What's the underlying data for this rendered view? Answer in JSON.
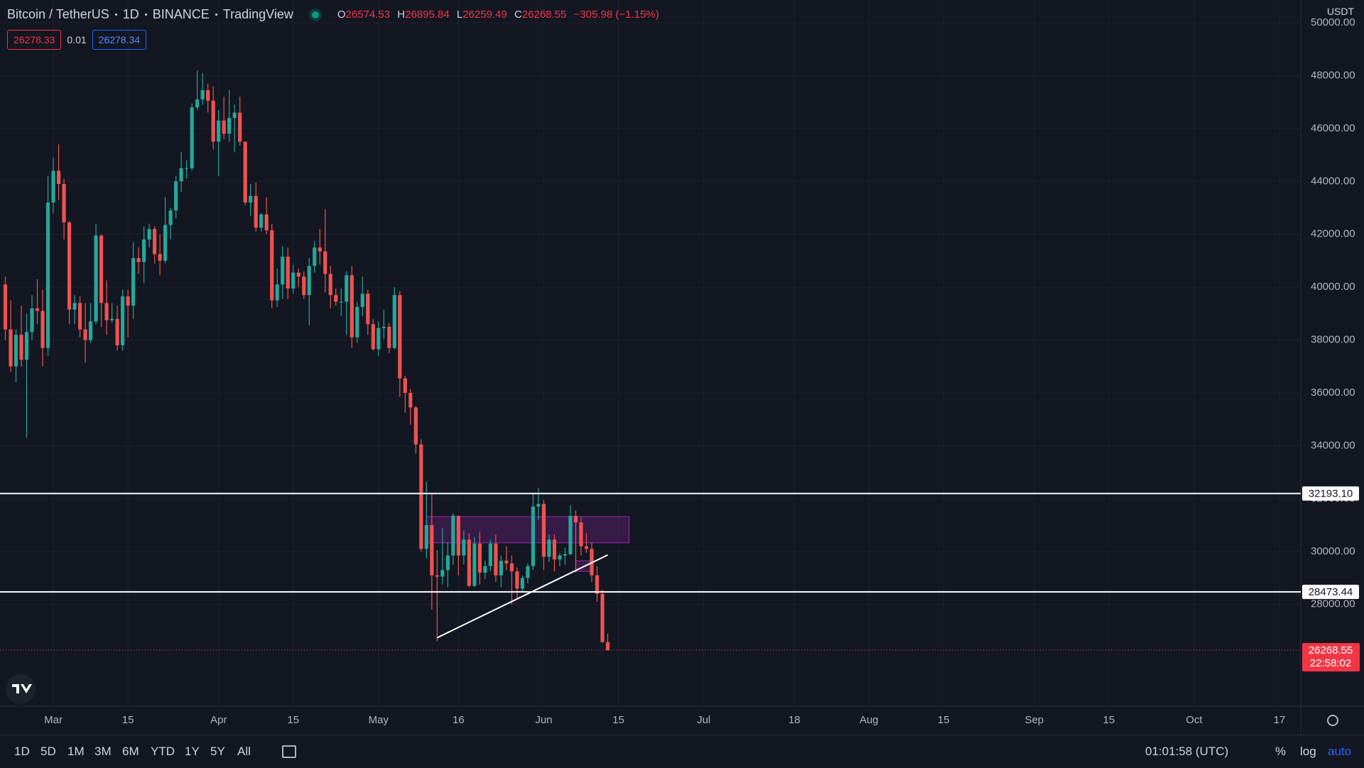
{
  "header": {
    "symbol": "Bitcoin / TetherUS",
    "interval": "1D",
    "exchange": "BINANCE",
    "source": "TradingView",
    "ohlc_labels": [
      "O",
      "H",
      "L",
      "C"
    ],
    "change": "−305.98 (−1.15%)",
    "bid": 26278.33,
    "spread": 0.01,
    "ask": 26278.34,
    "currency": "USDT",
    "countdown": "22:58:02"
  },
  "toolbar": {
    "ranges": [
      "1D",
      "5D",
      "1M",
      "3M",
      "6M",
      "YTD",
      "1Y",
      "5Y",
      "All"
    ],
    "time": "01:01:58 (UTC)",
    "options": [
      "%",
      "log",
      "auto"
    ]
  },
  "chart_data": {
    "type": "candlestick",
    "up_color": "#26a69a",
    "down_color": "#ef5350",
    "grid": true,
    "x": [
      "02-20",
      "02-21",
      "02-22",
      "02-23",
      "02-24",
      "02-25",
      "02-26",
      "02-27",
      "02-28",
      "03-01",
      "03-02",
      "03-03",
      "03-04",
      "03-05",
      "03-06",
      "03-07",
      "03-08",
      "03-09",
      "03-10",
      "03-11",
      "03-12",
      "03-13",
      "03-14",
      "03-15",
      "03-16",
      "03-17",
      "03-18",
      "03-19",
      "03-20",
      "03-21",
      "03-22",
      "03-23",
      "03-24",
      "03-25",
      "03-26",
      "03-27",
      "03-28",
      "03-29",
      "03-30",
      "03-31",
      "04-01",
      "04-02",
      "04-03",
      "04-04",
      "04-05",
      "04-06",
      "04-07",
      "04-08",
      "04-09",
      "04-10",
      "04-11",
      "04-12",
      "04-13",
      "04-14",
      "04-15",
      "04-16",
      "04-17",
      "04-18",
      "04-19",
      "04-20",
      "04-21",
      "04-22",
      "04-23",
      "04-24",
      "04-25",
      "04-26",
      "04-27",
      "04-28",
      "04-29",
      "04-30",
      "05-01",
      "05-02",
      "05-03",
      "05-04",
      "05-05",
      "05-06",
      "05-07",
      "05-08",
      "05-09",
      "05-10",
      "05-11",
      "05-12",
      "05-13",
      "05-14",
      "05-15",
      "05-16",
      "05-17",
      "05-18",
      "05-19",
      "05-20",
      "05-21",
      "05-22",
      "05-23",
      "05-24",
      "05-25",
      "05-26",
      "05-27",
      "05-28",
      "05-29",
      "05-30",
      "05-31",
      "06-01",
      "06-02",
      "06-03",
      "06-04",
      "06-05",
      "06-06",
      "06-07",
      "06-08",
      "06-09",
      "06-10",
      "06-11",
      "06-12",
      "06-13"
    ],
    "open": [
      40100,
      38400,
      37000,
      38200,
      37250,
      38300,
      39200,
      39100,
      37700,
      43200,
      44400,
      43900,
      42450,
      39150,
      39400,
      38400,
      38000,
      38700,
      41950,
      39400,
      38750,
      38800,
      37800,
      39650,
      39300,
      41100,
      40950,
      41800,
      42200,
      41250,
      41000,
      42350,
      42900,
      44000,
      44500,
      44500,
      46800,
      47100,
      47450,
      47050,
      45500,
      46300,
      45800,
      46400,
      46600,
      45500,
      43200,
      43450,
      42250,
      42750,
      42150,
      39500,
      40100,
      41150,
      39950,
      40550,
      40400,
      39700,
      40800,
      41500,
      41350,
      40500,
      39700,
      39450,
      39450,
      40450,
      38100,
      39250,
      39750,
      38600,
      37650,
      38450,
      38500,
      37700,
      39700,
      36550,
      36000,
      35450,
      34050,
      30100,
      31000,
      29100,
      29050,
      29300,
      29850,
      31350,
      29850,
      30450,
      28700,
      30300,
      29200,
      29450,
      30300,
      29100,
      29650,
      29550,
      29250,
      28600,
      29000,
      29450,
      31700,
      31800,
      29800,
      30450,
      29700,
      29850,
      29900,
      31350,
      31100,
      30200,
      30100,
      29100,
      28400,
      26574.53
    ],
    "high": [
      40400,
      39500,
      38400,
      39300,
      39000,
      39700,
      40300,
      39900,
      44200,
      44900,
      45400,
      44100,
      42500,
      39700,
      39650,
      39400,
      39400,
      42400,
      42000,
      40250,
      39400,
      39300,
      39900,
      39900,
      41700,
      41500,
      42300,
      42400,
      42300,
      42000,
      43400,
      43000,
      44200,
      45100,
      44800,
      46950,
      48200,
      48100,
      47700,
      47600,
      46700,
      47200,
      47450,
      46900,
      47200,
      45500,
      43900,
      43950,
      42800,
      43400,
      42400,
      40700,
      41550,
      41500,
      40850,
      40700,
      40600,
      41100,
      41750,
      42200,
      42950,
      40800,
      39950,
      39950,
      40600,
      40800,
      39450,
      40400,
      39900,
      38800,
      38700,
      39150,
      38650,
      40000,
      39850,
      36650,
      36150,
      35500,
      34250,
      32650,
      32200,
      30050,
      30900,
      30350,
      31450,
      31350,
      30800,
      30700,
      30550,
      30750,
      29650,
      30450,
      30650,
      29850,
      30200,
      29850,
      29400,
      29100,
      29550,
      32200,
      32400,
      31950,
      30650,
      30650,
      29950,
      30150,
      31750,
      31550,
      31300,
      30700,
      30350,
      29450,
      28550,
      26895.84
    ],
    "low": [
      38000,
      36800,
      36400,
      37000,
      34300,
      38000,
      38600,
      37000,
      37400,
      42800,
      43300,
      41800,
      38600,
      38600,
      38100,
      37150,
      37900,
      38600,
      38500,
      38200,
      38650,
      37600,
      37600,
      38100,
      38800,
      40500,
      40150,
      41500,
      40900,
      40450,
      40900,
      41800,
      42600,
      43600,
      44100,
      44400,
      46700,
      46900,
      46600,
      45200,
      44200,
      45600,
      45500,
      45100,
      45350,
      43100,
      42700,
      42100,
      42100,
      42000,
      39200,
      39250,
      39550,
      39550,
      39750,
      40000,
      39550,
      38550,
      40550,
      40850,
      39800,
      39200,
      39300,
      38900,
      38200,
      37700,
      37900,
      38900,
      38200,
      37600,
      37400,
      38050,
      37500,
      37650,
      35850,
      35250,
      34800,
      33700,
      30000,
      29750,
      27800,
      26600,
      28750,
      28650,
      29500,
      29100,
      29500,
      28650,
      28650,
      28750,
      28950,
      29250,
      28850,
      28650,
      29300,
      28000,
      28250,
      28450,
      28800,
      29300,
      31200,
      29300,
      29600,
      29250,
      29450,
      29500,
      29850,
      29200,
      29850,
      29950,
      28850,
      28100,
      26550,
      26259.49
    ],
    "close": [
      38400,
      37000,
      38200,
      37250,
      38300,
      39200,
      39100,
      37700,
      43200,
      44400,
      43900,
      42450,
      39150,
      39400,
      38400,
      38000,
      38700,
      41950,
      39400,
      38750,
      38800,
      37800,
      39650,
      39300,
      41100,
      40950,
      41800,
      42200,
      41250,
      41000,
      42350,
      42900,
      44000,
      44500,
      44500,
      46800,
      47100,
      47450,
      47050,
      45500,
      46300,
      45800,
      46400,
      46600,
      45500,
      43200,
      43450,
      42250,
      42750,
      42150,
      39500,
      40100,
      41150,
      39950,
      40550,
      40400,
      39700,
      40800,
      41500,
      41350,
      40500,
      39700,
      39450,
      39450,
      40450,
      38100,
      39250,
      39750,
      38600,
      37650,
      38450,
      38500,
      37700,
      39700,
      36550,
      36000,
      35450,
      34050,
      30100,
      31000,
      29100,
      29050,
      29300,
      29850,
      31350,
      29850,
      30450,
      28700,
      30300,
      29200,
      29450,
      30300,
      29100,
      29650,
      29550,
      29250,
      28600,
      29000,
      29450,
      31700,
      31800,
      29800,
      30450,
      29700,
      29850,
      29900,
      31350,
      31100,
      30200,
      30100,
      29100,
      28400,
      26574.53,
      26268.55
    ],
    "xlim": [
      "02-19",
      "10-21"
    ],
    "xticks": [
      {
        "value": "03-01",
        "label": "Mar"
      },
      {
        "value": "03-15",
        "label": "15"
      },
      {
        "value": "04-01",
        "label": "Apr"
      },
      {
        "value": "04-15",
        "label": "15"
      },
      {
        "value": "05-01",
        "label": "May"
      },
      {
        "value": "05-16",
        "label": "16"
      },
      {
        "value": "06-01",
        "label": "Jun"
      },
      {
        "value": "06-15",
        "label": "15"
      },
      {
        "value": "07-01",
        "label": "Jul"
      },
      {
        "value": "07-18",
        "label": "18"
      },
      {
        "value": "08-01",
        "label": "Aug"
      },
      {
        "value": "08-15",
        "label": "15"
      },
      {
        "value": "09-01",
        "label": "Sep"
      },
      {
        "value": "09-15",
        "label": "15"
      },
      {
        "value": "10-01",
        "label": "Oct"
      },
      {
        "value": "10-17",
        "label": "17"
      }
    ],
    "ylim": [
      24150,
      50860
    ],
    "yticks": [
      {
        "value": 28000,
        "label": "28000.00"
      },
      {
        "value": 30000,
        "label": "30000.00"
      },
      {
        "value": 32000,
        "label": "32000.00"
      },
      {
        "value": 34000,
        "label": "34000.00"
      },
      {
        "value": 36000,
        "label": "36000.00"
      },
      {
        "value": 38000,
        "label": "38000.00"
      },
      {
        "value": 40000,
        "label": "40000.00"
      },
      {
        "value": 42000,
        "label": "42000.00"
      },
      {
        "value": 44000,
        "label": "44000.00"
      },
      {
        "value": 46000,
        "label": "46000.00"
      },
      {
        "value": 48000,
        "label": "48000.00"
      },
      {
        "value": 50000,
        "label": "50000.00"
      }
    ],
    "levels": [
      {
        "value": 32193.1,
        "label": "32193.10"
      },
      {
        "value": 28473.44,
        "label": "28473.44"
      }
    ],
    "zones": [
      {
        "x": [
          "05-10",
          "06-17"
        ],
        "y": [
          30330,
          31320
        ]
      },
      {
        "x": [
          "06-07",
          "06-10"
        ],
        "y": [
          29250,
          29650
        ]
      }
    ],
    "trendline": {
      "x": [
        "05-12",
        "06-13"
      ],
      "y": [
        26740,
        29870
      ]
    }
  }
}
